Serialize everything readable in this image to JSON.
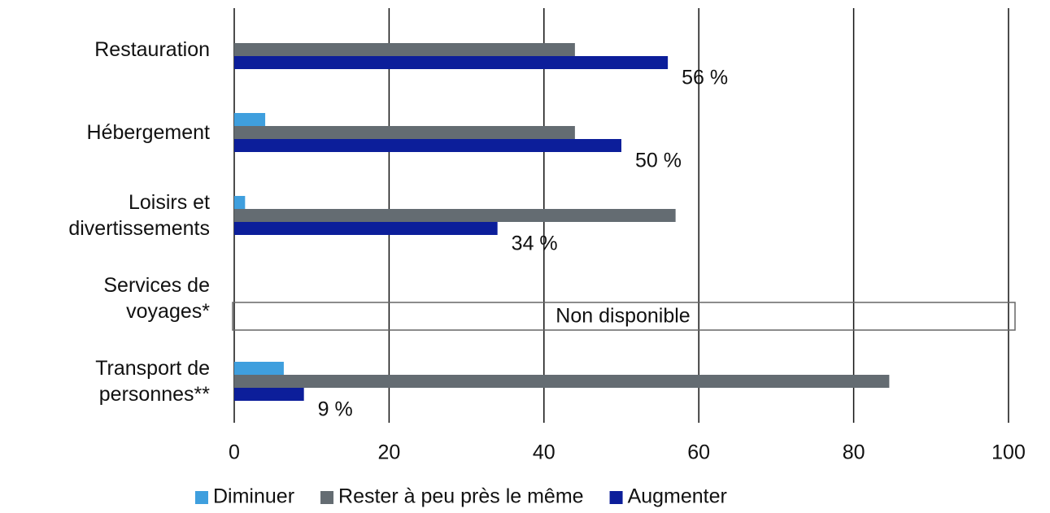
{
  "chart_data": {
    "type": "hbar",
    "categories": [
      "Restauration",
      "Hébergement",
      "Loisirs et divertissements",
      "Services de voyages*",
      "Transport de personnes**"
    ],
    "series": [
      {
        "name": "Diminuer",
        "color": "#3f9fde",
        "values": [
          null,
          4,
          1.4,
          null,
          6.4
        ]
      },
      {
        "name": "Rester à peu près le même",
        "color": "#646c72",
        "values": [
          44,
          44,
          57,
          null,
          84.6
        ]
      },
      {
        "name": "Augmenter",
        "color": "#0c1e9a",
        "values": [
          56,
          50,
          34,
          null,
          9
        ],
        "value_labels": [
          "56 %",
          "50 %",
          "34 %",
          null,
          "9 %"
        ]
      }
    ],
    "annotation": "Non disponible",
    "xlim": [
      0,
      100
    ],
    "xticks": [
      0,
      20,
      40,
      60,
      80,
      100
    ],
    "grid": true
  }
}
